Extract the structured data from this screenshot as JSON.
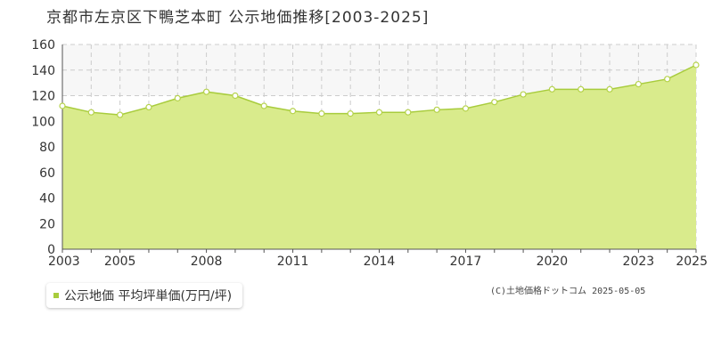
{
  "title": "京都市左京区下鴨芝本町 公示地価推移[2003-2025]",
  "legend_label": "公示地価 平均坪単価(万円/坪)",
  "copyright": "(C)土地価格ドットコム 2025-05-05",
  "colors": {
    "fill": "#d9eb8c",
    "line": "#a8cc3c",
    "marker_fill": "#ffffff",
    "marker_stroke": "#b5d24a",
    "legend_swatch": "#a8cc3c",
    "upper_band": "#f7f7f7",
    "grid": "#cccccc",
    "axis": "#555555",
    "tick_text": "#333333"
  },
  "chart_data": {
    "type": "area",
    "title": "京都市左京区下鴨芝本町 公示地価推移[2003-2025]",
    "x": [
      2003,
      2004,
      2005,
      2006,
      2007,
      2008,
      2009,
      2010,
      2011,
      2012,
      2013,
      2014,
      2015,
      2016,
      2017,
      2018,
      2019,
      2020,
      2021,
      2022,
      2023,
      2024,
      2025
    ],
    "series": [
      {
        "name": "公示地価 平均坪単価(万円/坪)",
        "values": [
          112,
          107,
          105,
          111,
          118,
          123,
          120,
          112,
          108,
          106,
          106,
          107,
          107,
          109,
          110,
          115,
          121,
          125,
          125,
          125,
          129,
          133,
          144
        ]
      }
    ],
    "xticks": [
      2003,
      2005,
      2008,
      2011,
      2014,
      2017,
      2020,
      2023,
      2025
    ],
    "xtick_labels": [
      "2003",
      "2005",
      "2008",
      "2011",
      "2014",
      "2017",
      "2020",
      "2023",
      "2025"
    ],
    "ylim": [
      0,
      160
    ],
    "yticks": [
      0,
      20,
      40,
      60,
      80,
      100,
      120,
      140,
      160
    ],
    "ytick_labels": [
      "0",
      "20",
      "40",
      "60",
      "80",
      "100",
      "120",
      "140",
      "160"
    ],
    "xlabel": "",
    "ylabel": "",
    "grid": true,
    "legend_position": "bottom-left"
  }
}
